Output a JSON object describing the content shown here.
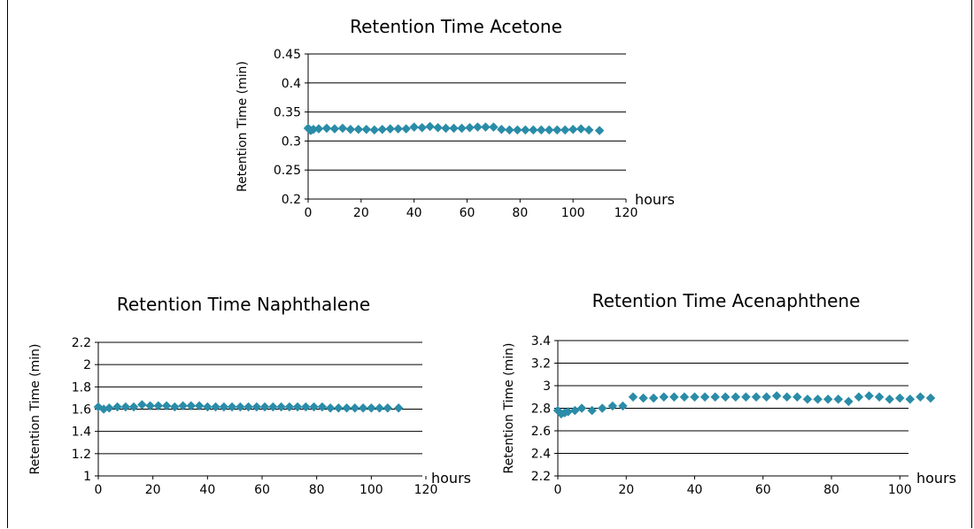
{
  "colors": {
    "marker": "#2a8ca8",
    "grid": "#000000"
  },
  "chart_data": [
    {
      "type": "scatter",
      "title": "Retention Time Acetone",
      "xlabel": "hours",
      "ylabel": "Retention Time (min)",
      "xlim": [
        0,
        120
      ],
      "ylim": [
        0.2,
        0.45
      ],
      "x_ticks": [
        "0",
        "20",
        "40",
        "60",
        "80",
        "100",
        "120"
      ],
      "y_ticks": [
        "0.2",
        "0.25",
        "0.3",
        "0.35",
        "0.4",
        "0.45"
      ],
      "grid": true,
      "series": [
        {
          "x": [
            0,
            1,
            2,
            4,
            7,
            10,
            13,
            16,
            19,
            22,
            25,
            28,
            31,
            34,
            37,
            40,
            43,
            46,
            49,
            52,
            55,
            58,
            61,
            64,
            67,
            70,
            73,
            76,
            79,
            82,
            85,
            88,
            91,
            94,
            97,
            100,
            103,
            106,
            110
          ],
          "y": [
            0.322,
            0.318,
            0.32,
            0.321,
            0.322,
            0.321,
            0.322,
            0.32,
            0.32,
            0.32,
            0.319,
            0.32,
            0.321,
            0.321,
            0.321,
            0.324,
            0.323,
            0.325,
            0.323,
            0.322,
            0.322,
            0.322,
            0.323,
            0.324,
            0.324,
            0.324,
            0.32,
            0.319,
            0.319,
            0.319,
            0.319,
            0.319,
            0.319,
            0.319,
            0.319,
            0.32,
            0.321,
            0.319,
            0.318
          ]
        }
      ]
    },
    {
      "type": "scatter",
      "title": "Retention Time Naphthalene",
      "xlabel": "hours",
      "ylabel": "Retention Time (min)",
      "xlim": [
        0,
        120
      ],
      "ylim": [
        1,
        2.2
      ],
      "x_ticks": [
        "0",
        "20",
        "40",
        "60",
        "80",
        "100",
        "120"
      ],
      "y_ticks": [
        "1",
        "1.2",
        "1.4",
        "1.6",
        "1.8",
        "2",
        "2.2"
      ],
      "grid": true,
      "series": [
        {
          "x": [
            0,
            2,
            4,
            7,
            10,
            13,
            16,
            19,
            22,
            25,
            28,
            31,
            34,
            37,
            40,
            43,
            46,
            49,
            52,
            55,
            58,
            61,
            64,
            67,
            70,
            73,
            76,
            79,
            82,
            85,
            88,
            91,
            94,
            97,
            100,
            103,
            106,
            110
          ],
          "y": [
            1.62,
            1.6,
            1.61,
            1.62,
            1.62,
            1.62,
            1.64,
            1.63,
            1.63,
            1.63,
            1.62,
            1.63,
            1.63,
            1.63,
            1.62,
            1.62,
            1.62,
            1.62,
            1.62,
            1.62,
            1.62,
            1.62,
            1.62,
            1.62,
            1.62,
            1.62,
            1.62,
            1.62,
            1.62,
            1.61,
            1.61,
            1.61,
            1.61,
            1.61,
            1.61,
            1.61,
            1.61,
            1.61
          ]
        }
      ]
    },
    {
      "type": "scatter",
      "title": "Retention Time Acenaphthene",
      "xlabel": "hours",
      "ylabel": "Retention Time (min)",
      "xlim": [
        0,
        120
      ],
      "ylim": [
        2.2,
        3.4
      ],
      "x_ticks": [
        "0",
        "20",
        "40",
        "60",
        "80",
        "100"
      ],
      "y_ticks": [
        "2.2",
        "2.4",
        "2.6",
        "2.8",
        "3",
        "3.2",
        "3.4"
      ],
      "grid": true,
      "series": [
        {
          "x": [
            0,
            1,
            2,
            3,
            5,
            7,
            10,
            13,
            16,
            19,
            22,
            25,
            28,
            31,
            34,
            37,
            40,
            43,
            46,
            49,
            52,
            55,
            58,
            61,
            64,
            67,
            70,
            73,
            76,
            79,
            82,
            85,
            88,
            91,
            94,
            97,
            100,
            103,
            106,
            109
          ],
          "y": [
            2.78,
            2.75,
            2.76,
            2.77,
            2.78,
            2.8,
            2.78,
            2.8,
            2.82,
            2.82,
            2.9,
            2.89,
            2.89,
            2.9,
            2.9,
            2.9,
            2.9,
            2.9,
            2.9,
            2.9,
            2.9,
            2.9,
            2.9,
            2.9,
            2.91,
            2.9,
            2.9,
            2.88,
            2.88,
            2.88,
            2.88,
            2.86,
            2.9,
            2.91,
            2.9,
            2.88,
            2.89,
            2.88,
            2.9,
            2.89
          ]
        }
      ]
    }
  ]
}
